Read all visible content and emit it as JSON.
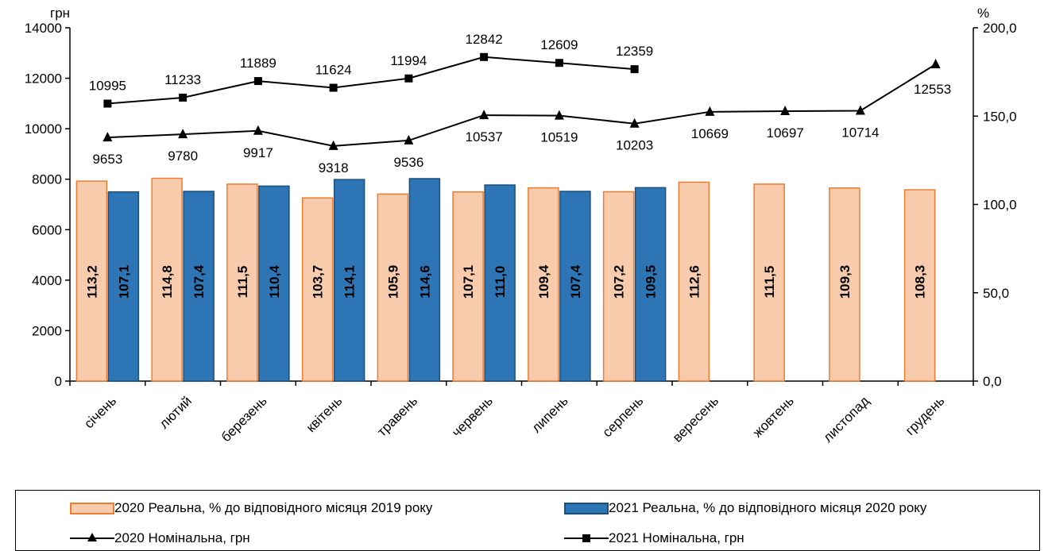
{
  "chart_data": {
    "type": "bar+line",
    "categories": [
      "січень",
      "лютий",
      "березень",
      "квітень",
      "травень",
      "червень",
      "липень",
      "серпень",
      "вересень",
      "жовтень",
      "листопад",
      "грудень"
    ],
    "left_axis": {
      "unit": "грн",
      "ylim": [
        0,
        14000
      ],
      "ticks": [
        0,
        2000,
        4000,
        6000,
        8000,
        10000,
        12000,
        14000
      ]
    },
    "right_axis": {
      "unit": "%",
      "ylim": [
        0,
        200
      ],
      "ticks": [
        "0,0",
        "50,0",
        "100,0",
        "150,0",
        "200,0"
      ]
    },
    "bar_series": [
      {
        "name": "2020 Реальна, % до відповідного місяця 2019 року",
        "axis": "right",
        "values": [
          113.2,
          114.8,
          111.5,
          103.7,
          105.9,
          107.1,
          109.4,
          107.2,
          112.6,
          111.5,
          109.3,
          108.3
        ],
        "labels": [
          "113,2",
          "114,8",
          "111,5",
          "103,7",
          "105,9",
          "107,1",
          "109,4",
          "107,2",
          "112,6",
          "111,5",
          "109,3",
          "108,3"
        ],
        "color": "#f8cbad",
        "edge": "#ed7d31"
      },
      {
        "name": "2021 Реальна, % до відповідного місяця 2020 року",
        "axis": "right",
        "values": [
          107.1,
          107.4,
          110.4,
          114.1,
          114.6,
          111.0,
          107.4,
          109.5
        ],
        "labels": [
          "107,1",
          "107,4",
          "110,4",
          "114,1",
          "114,6",
          "111,0",
          "107,4",
          "109,5"
        ],
        "color": "#2e75b6",
        "edge": "#1f4e79"
      }
    ],
    "line_series": [
      {
        "name": "2020 Номінальна, грн",
        "axis": "left",
        "marker": "triangle",
        "values": [
          9653,
          9780,
          9917,
          9318,
          9536,
          10537,
          10519,
          10203,
          10669,
          10697,
          10714,
          12553
        ],
        "labels": [
          "9653",
          "9780",
          "9917",
          "9318",
          "9536",
          "10537",
          "10519",
          "10203",
          "10669",
          "10697",
          "10714",
          "12553"
        ]
      },
      {
        "name": "2021 Номінальна, грн",
        "axis": "left",
        "marker": "square",
        "values": [
          10995,
          11233,
          11889,
          11624,
          11994,
          12842,
          12609,
          12359
        ],
        "labels": [
          "10995",
          "11233",
          "11889",
          "11624",
          "11994",
          "12842",
          "12609",
          "12359"
        ]
      }
    ],
    "legend_position": "bottom"
  }
}
